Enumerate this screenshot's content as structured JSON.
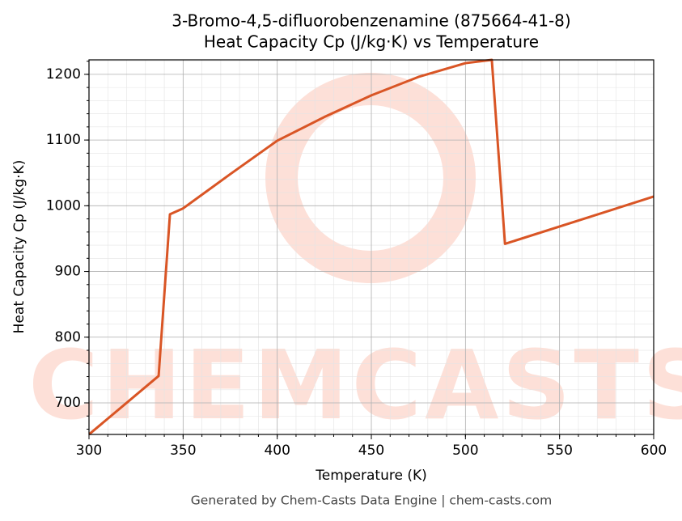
{
  "chart_data": {
    "type": "line",
    "title": [
      "3-Bromo-4,5-difluorobenzenamine (875664-41-8)",
      "Heat Capacity Cp (J/kg·K) vs Temperature"
    ],
    "x_label": "Temperature (K)",
    "y_label": "Heat Capacity Cp (J/kg·K)",
    "watermark": "CHEMCASTS",
    "footer": "Generated by Chem-Casts Data Engine | chem-casts.com",
    "x": [
      300,
      337,
      343,
      350,
      375,
      400,
      425,
      450,
      475,
      500,
      514,
      521,
      600
    ],
    "series": [
      {
        "name": "Cp",
        "color": "#d95525",
        "values": [
          652,
          741,
          987,
          996,
          1048,
          1099,
          1135,
          1168,
          1196,
          1217,
          1222,
          942,
          1014
        ]
      }
    ],
    "xlim": [
      300,
      600
    ],
    "xticks": [
      300,
      350,
      400,
      450,
      500,
      550,
      600
    ],
    "ylim": [
      652,
      1222
    ],
    "yticks": [
      700,
      800,
      900,
      1000,
      1100,
      1200
    ],
    "grid": true
  }
}
